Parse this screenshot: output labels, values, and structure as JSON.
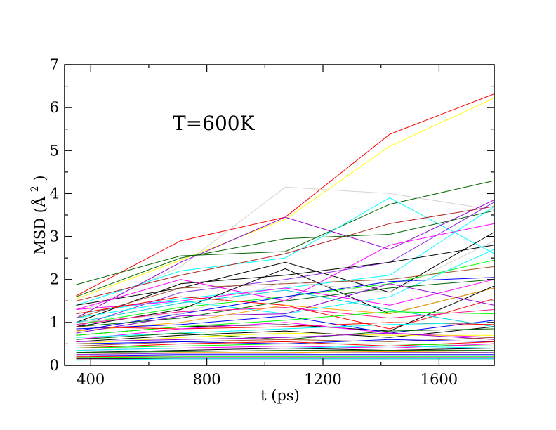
{
  "chart_data": {
    "type": "line",
    "annotation": "T=600K",
    "xlabel": "t (ps)",
    "ylabel_main": "MSD (Å",
    "ylabel_exp": "2",
    "ylabel_close": ")",
    "xlim": [
      310,
      1790
    ],
    "ylim": [
      0,
      7
    ],
    "x_ticks": [
      400,
      800,
      1200,
      1600
    ],
    "y_ticks": [
      0,
      1,
      2,
      3,
      4,
      5,
      6,
      7
    ],
    "x": [
      350,
      710,
      1070,
      1430,
      1790
    ],
    "grid": false,
    "legend": "none",
    "series": [
      {
        "color": "#ff0000",
        "values": [
          1.62,
          2.9,
          3.45,
          5.38,
          6.32
        ]
      },
      {
        "color": "#ffff00",
        "values": [
          1.55,
          2.45,
          3.4,
          5.1,
          6.22
        ]
      },
      {
        "color": "#006400",
        "values": [
          1.88,
          2.55,
          2.65,
          3.75,
          4.3
        ]
      },
      {
        "color": "#d3d3d3",
        "values": [
          1.2,
          2.3,
          4.15,
          4.0,
          3.62
        ]
      },
      {
        "color": "#00ffff",
        "values": [
          1.4,
          2.2,
          2.5,
          3.9,
          2.6
        ]
      },
      {
        "color": "#9400d3",
        "values": [
          1.1,
          2.4,
          3.45,
          2.7,
          3.85
        ]
      },
      {
        "color": "#b22222",
        "values": [
          1.5,
          2.1,
          2.6,
          3.3,
          3.7
        ]
      },
      {
        "color": "#006400",
        "values": [
          1.6,
          2.5,
          2.95,
          3.05,
          3.6
        ]
      },
      {
        "color": "#000000",
        "values": [
          1.4,
          1.8,
          2.4,
          1.7,
          3.1
        ]
      },
      {
        "color": "#8a2be2",
        "values": [
          0.9,
          1.7,
          2.0,
          2.4,
          3.8
        ]
      },
      {
        "color": "#ff00ff",
        "values": [
          1.3,
          2.0,
          1.5,
          2.8,
          3.3
        ]
      },
      {
        "color": "#00ffff",
        "values": [
          1.2,
          1.55,
          1.8,
          2.1,
          3.7
        ]
      },
      {
        "color": "#000000",
        "values": [
          1.0,
          1.9,
          2.1,
          2.4,
          2.8
        ]
      },
      {
        "color": "#00ff00",
        "values": [
          0.95,
          1.35,
          1.6,
          1.9,
          2.45
        ]
      },
      {
        "color": "#ff00ff",
        "values": [
          1.3,
          1.5,
          1.8,
          1.4,
          2.0
        ]
      },
      {
        "color": "#a0522d",
        "values": [
          1.1,
          1.8,
          1.9,
          2.0,
          2.3
        ]
      },
      {
        "color": "#000000",
        "values": [
          0.9,
          1.3,
          2.25,
          1.2,
          1.8
        ]
      },
      {
        "color": "#00ffff",
        "values": [
          1.1,
          1.5,
          1.2,
          1.6,
          2.7
        ]
      },
      {
        "color": "#0000ff",
        "values": [
          0.8,
          1.2,
          1.6,
          1.95,
          2.05
        ]
      },
      {
        "color": "#ff0000",
        "values": [
          1.2,
          1.6,
          1.4,
          0.85,
          1.55
        ]
      },
      {
        "color": "#d3d3d3",
        "values": [
          1.0,
          1.2,
          1.95,
          1.7,
          2.9
        ]
      },
      {
        "color": "#006400",
        "values": [
          0.9,
          1.1,
          1.5,
          1.8,
          2.0
        ]
      },
      {
        "color": "#ffa500",
        "values": [
          0.8,
          1.0,
          1.4,
          1.2,
          1.8
        ]
      },
      {
        "color": "#9400d3",
        "values": [
          0.75,
          1.15,
          1.2,
          1.9,
          1.4
        ]
      },
      {
        "color": "#000000",
        "values": [
          0.7,
          0.9,
          0.95,
          0.8,
          1.85
        ]
      },
      {
        "color": "#00ced1",
        "values": [
          1.0,
          1.45,
          1.75,
          1.3,
          0.9
        ]
      },
      {
        "color": "#ff1493",
        "values": [
          0.95,
          1.25,
          1.35,
          1.1,
          1.3
        ]
      },
      {
        "color": "#0000ff",
        "values": [
          0.85,
          0.95,
          1.15,
          0.75,
          1.05
        ]
      },
      {
        "color": "#00ff00",
        "values": [
          0.7,
          0.9,
          1.05,
          1.25,
          1.2
        ]
      },
      {
        "color": "#ff0000",
        "values": [
          0.9,
          0.85,
          0.9,
          1.0,
          0.95
        ]
      },
      {
        "color": "#ff00ff",
        "values": [
          0.6,
          0.85,
          1.0,
          0.75,
          0.65
        ]
      },
      {
        "color": "#00ffff",
        "values": [
          0.65,
          0.75,
          0.85,
          0.95,
          1.0
        ]
      },
      {
        "color": "#000000",
        "values": [
          0.55,
          0.7,
          0.8,
          0.65,
          0.9
        ]
      },
      {
        "color": "#006400",
        "values": [
          0.6,
          0.75,
          0.6,
          0.8,
          0.85
        ]
      },
      {
        "color": "#ffff00",
        "values": [
          0.5,
          0.65,
          0.75,
          0.7,
          0.7
        ]
      },
      {
        "color": "#9400d3",
        "values": [
          0.55,
          0.6,
          0.65,
          0.75,
          0.6
        ]
      },
      {
        "color": "#a0522d",
        "values": [
          0.45,
          0.55,
          0.6,
          0.55,
          0.65
        ]
      },
      {
        "color": "#0000ff",
        "values": [
          0.5,
          0.55,
          0.5,
          0.6,
          0.55
        ]
      },
      {
        "color": "#ff0000",
        "values": [
          0.4,
          0.5,
          0.55,
          0.45,
          0.55
        ]
      },
      {
        "color": "#00ff00",
        "values": [
          0.4,
          0.45,
          0.5,
          0.5,
          0.45
        ]
      },
      {
        "color": "#ff00ff",
        "values": [
          0.35,
          0.4,
          0.45,
          0.4,
          0.5
        ]
      },
      {
        "color": "#00ffff",
        "values": [
          0.35,
          0.4,
          0.4,
          0.45,
          0.4
        ]
      },
      {
        "color": "#000000",
        "values": [
          0.3,
          0.35,
          0.4,
          0.35,
          0.4
        ]
      },
      {
        "color": "#006400",
        "values": [
          0.3,
          0.32,
          0.35,
          0.35,
          0.35
        ]
      },
      {
        "color": "#ffa500",
        "values": [
          0.25,
          0.3,
          0.3,
          0.32,
          0.3
        ]
      },
      {
        "color": "#8a2be2",
        "values": [
          0.25,
          0.28,
          0.28,
          0.3,
          0.3
        ]
      },
      {
        "color": "#0000ff",
        "values": [
          0.22,
          0.25,
          0.25,
          0.25,
          0.25
        ]
      },
      {
        "color": "#ff0000",
        "values": [
          0.2,
          0.22,
          0.22,
          0.22,
          0.22
        ]
      },
      {
        "color": "#00ff00",
        "values": [
          0.18,
          0.2,
          0.2,
          0.2,
          0.2
        ]
      },
      {
        "color": "#ff00ff",
        "values": [
          0.15,
          0.18,
          0.18,
          0.18,
          0.18
        ]
      },
      {
        "color": "#000000",
        "values": [
          0.15,
          0.15,
          0.15,
          0.15,
          0.15
        ]
      },
      {
        "color": "#00ffff",
        "values": [
          0.12,
          0.15,
          0.15,
          0.15,
          0.15
        ]
      }
    ]
  }
}
